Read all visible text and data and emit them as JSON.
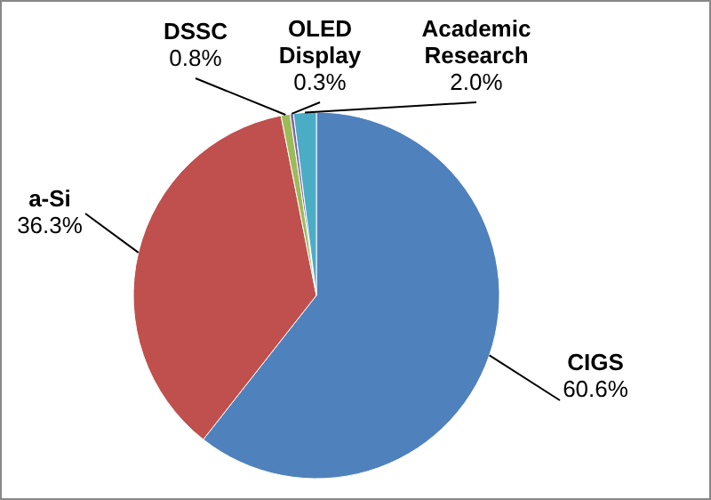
{
  "chart_data": {
    "type": "pie",
    "categories": [
      "CIGS",
      "a-Si",
      "DSSC",
      "OLED Display",
      "Academic Research"
    ],
    "values": [
      60.6,
      36.3,
      0.8,
      0.3,
      2.0
    ],
    "colors": [
      "#4f81bd",
      "#c0504d",
      "#9bbb59",
      "#8064a2",
      "#4bacc6"
    ],
    "value_labels": [
      "60.6%",
      "36.3%",
      "0.8%",
      "0.3%",
      "2.0%"
    ]
  }
}
